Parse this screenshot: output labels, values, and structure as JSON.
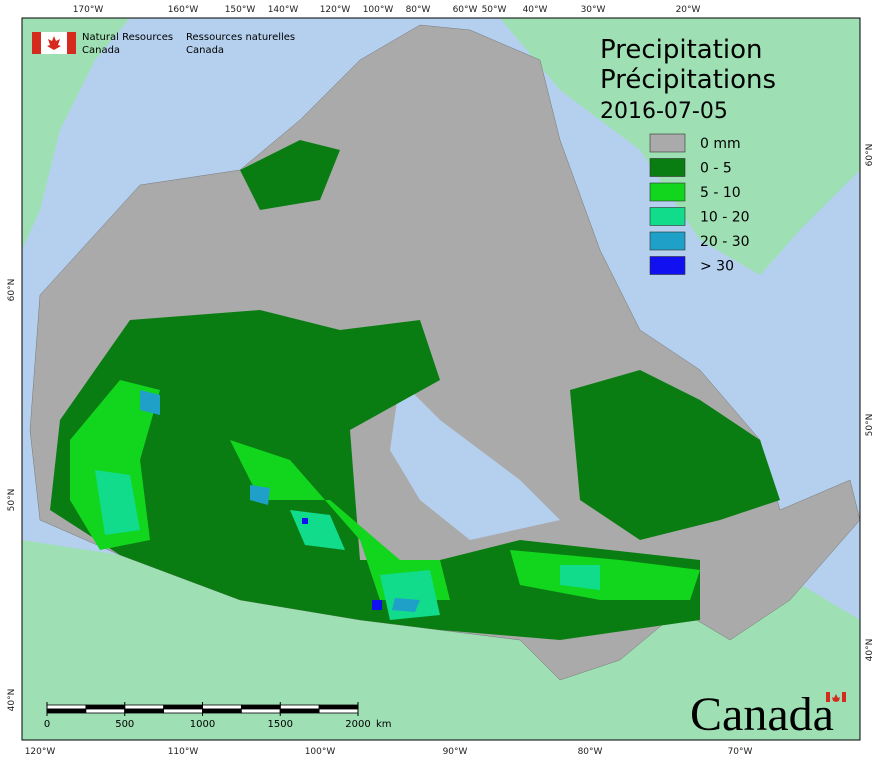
{
  "org": {
    "en": [
      "Natural Resources",
      "Canada"
    ],
    "fr": [
      "Ressources naturelles",
      "Canada"
    ]
  },
  "title": {
    "en": "Precipitation",
    "fr": "Précipitations",
    "date": "2016-07-05"
  },
  "legend": [
    {
      "label": "0 mm",
      "color": "#aaaaaa"
    },
    {
      "label": "0 - 5",
      "color": "#0a7d12"
    },
    {
      "label": "5 - 10",
      "color": "#12d61e"
    },
    {
      "label": "10 - 20",
      "color": "#10dc8c"
    },
    {
      "label": "20 - 30",
      "color": "#1ea0c8"
    },
    {
      "label": "> 30",
      "color": "#1010f0"
    }
  ],
  "graticule": {
    "top": [
      "170°W",
      "160°W",
      "150°W",
      "140°W",
      "120°W",
      "100°W",
      "80°W",
      "60°W",
      "50°W",
      "40°W",
      "30°W",
      "20°W"
    ],
    "bottom": [
      "120°W",
      "110°W",
      "100°W",
      "90°W",
      "80°W",
      "70°W"
    ],
    "left": [
      "60°N",
      "50°N",
      "40°N"
    ],
    "right": [
      "60°N",
      "50°N",
      "40°N"
    ]
  },
  "scale_bar": {
    "ticks": [
      0,
      500,
      1000,
      1500,
      2000
    ],
    "unit": "km"
  },
  "wordmark": "Canada"
}
